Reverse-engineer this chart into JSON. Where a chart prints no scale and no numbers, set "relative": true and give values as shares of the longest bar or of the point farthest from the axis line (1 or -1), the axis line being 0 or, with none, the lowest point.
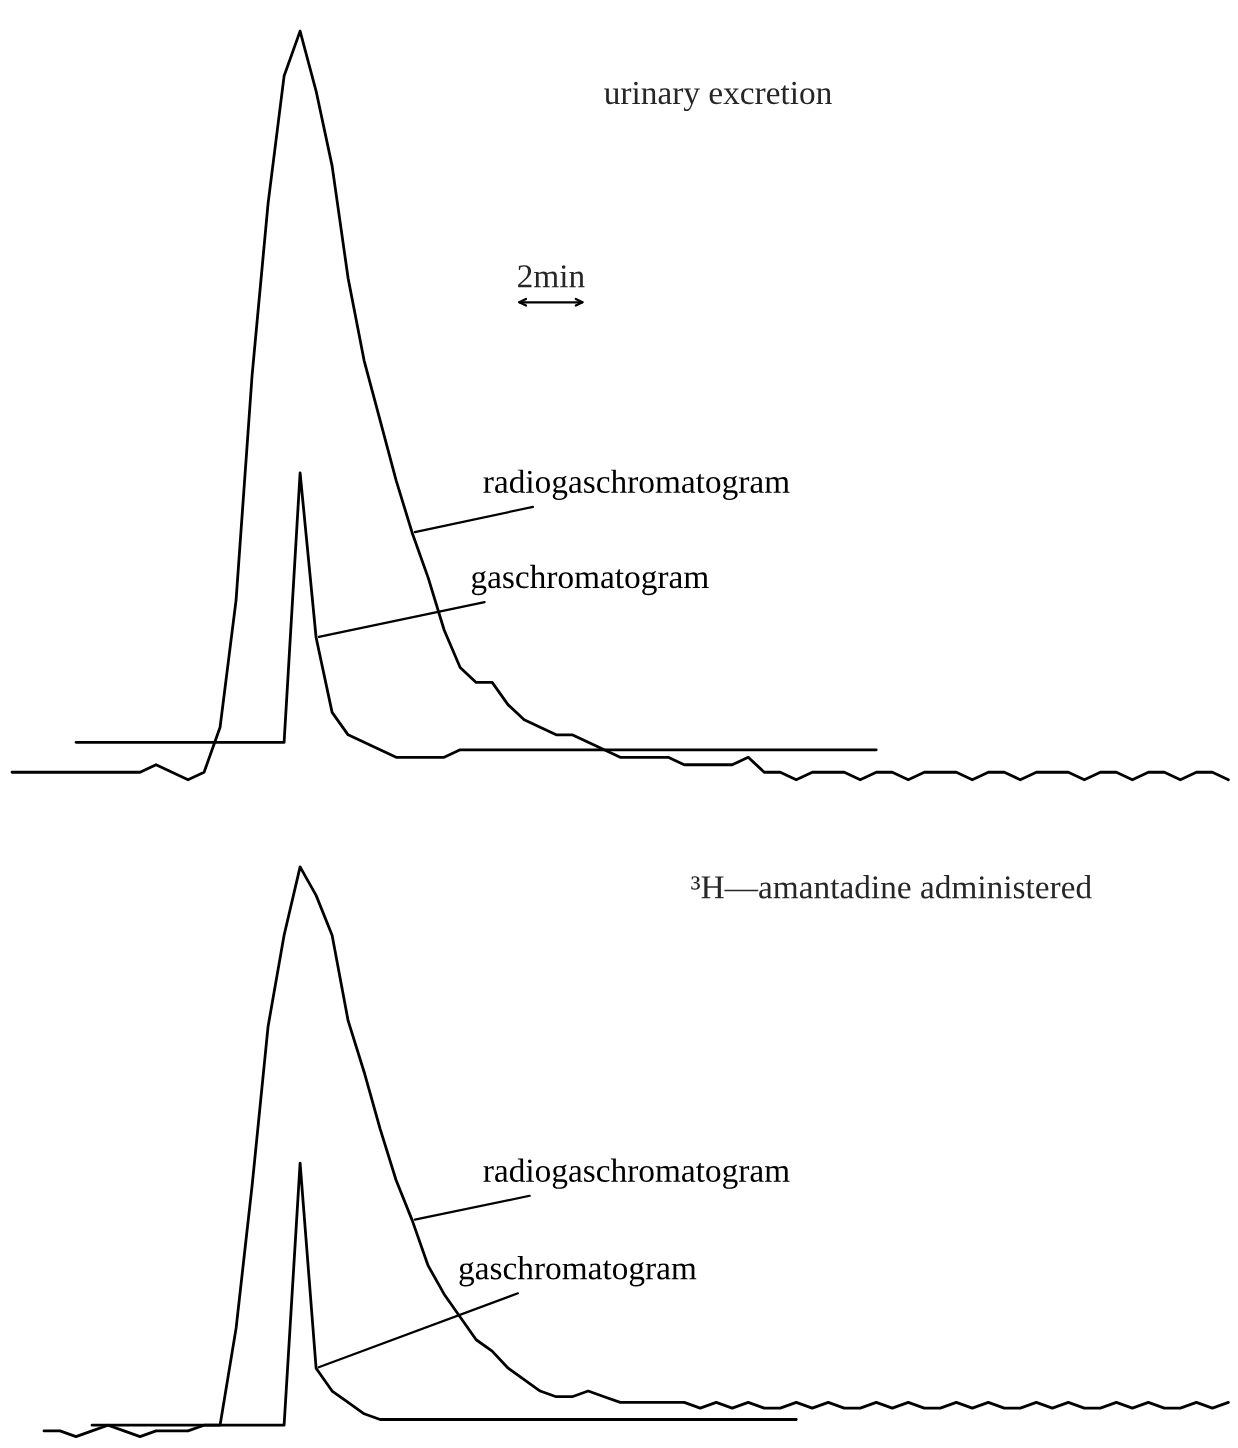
{
  "chart_data": [
    {
      "type": "line",
      "title": "urinary excretion",
      "relative": true,
      "annotations": [
        "2min"
      ],
      "categories": [
        null,
        null,
        null,
        null,
        null,
        null,
        null,
        null,
        null,
        null,
        null,
        null,
        null,
        null,
        null,
        null,
        null,
        null,
        null,
        null,
        null,
        null,
        null,
        null,
        null,
        null,
        null,
        null,
        null,
        null,
        null,
        null,
        null,
        null,
        null,
        null,
        null,
        null,
        null,
        null,
        null,
        null,
        null,
        null,
        null,
        null,
        null,
        null,
        null,
        null,
        null,
        null,
        null,
        null,
        null,
        null,
        null,
        null,
        null,
        null,
        null,
        null,
        null,
        null,
        null,
        null,
        null,
        null,
        null,
        null,
        null,
        null,
        null,
        null,
        null,
        null,
        null
      ],
      "series": [
        {
          "name": "radiogaschromatogram",
          "color": "#000000",
          "values": [
            0.01,
            0.01,
            0.01,
            0.01,
            0.01,
            0.01,
            0.01,
            0.01,
            0.01,
            0.02,
            0.01,
            0,
            0.01,
            0.07,
            0.24,
            0.54,
            0.77,
            0.94,
            1,
            0.92,
            0.82,
            0.67,
            0.56,
            0.48,
            0.4,
            0.33,
            0.27,
            0.2,
            0.15,
            0.13,
            0.13,
            0.1,
            0.08,
            0.07,
            0.06,
            0.06,
            0.05,
            0.04,
            0.03,
            0.03,
            0.03,
            0.03,
            0.02,
            0.02,
            0.02,
            0.02,
            0.03,
            0.01,
            0.01,
            0,
            0.01,
            0.01,
            0.01,
            0,
            0.01,
            0.01,
            0,
            0.01,
            0.01,
            0.01,
            0,
            0.01,
            0.01,
            0,
            0.01,
            0.01,
            0.01,
            0,
            0.01,
            0.01,
            0,
            0.01,
            0.01,
            0,
            0.01,
            0.01,
            0
          ]
        },
        {
          "name": "gaschromatogram",
          "color": "#000000",
          "values": [
            null,
            null,
            null,
            null,
            0.05,
            0.05,
            0.05,
            0.05,
            0.05,
            0.05,
            0.05,
            0.05,
            0.05,
            0.05,
            0.05,
            0.05,
            0.05,
            0.05,
            0.41,
            0.19,
            0.09,
            0.06,
            0.05,
            0.04,
            0.03,
            0.03,
            0.03,
            0.03,
            0.04,
            0.04,
            0.04,
            0.04,
            0.04,
            0.04,
            0.04,
            0.04,
            0.04,
            0.04,
            0.04,
            0.04,
            0.04,
            0.04,
            0.04,
            0.04,
            0.04,
            0.04,
            0.04,
            0.04,
            0.04,
            0.04,
            0.04,
            0.04,
            0.04,
            0.04,
            0.04,
            null,
            null,
            null,
            null,
            null,
            null,
            null,
            null,
            null,
            null,
            null,
            null,
            null,
            null,
            null,
            null,
            null,
            null,
            null,
            null,
            null,
            null
          ]
        }
      ]
    },
    {
      "type": "line",
      "title": "³H—amantadine administered",
      "relative": true,
      "categories": [
        null,
        null,
        null,
        null,
        null,
        null,
        null,
        null,
        null,
        null,
        null,
        null,
        null,
        null,
        null,
        null,
        null,
        null,
        null,
        null,
        null,
        null,
        null,
        null,
        null,
        null,
        null,
        null,
        null,
        null,
        null,
        null,
        null,
        null,
        null,
        null,
        null,
        null,
        null,
        null,
        null,
        null,
        null,
        null,
        null,
        null,
        null,
        null,
        null,
        null,
        null,
        null,
        null,
        null,
        null,
        null,
        null,
        null,
        null,
        null,
        null,
        null,
        null,
        null,
        null,
        null,
        null,
        null,
        null,
        null,
        null,
        null,
        null,
        null,
        null,
        null,
        null
      ],
      "series": [
        {
          "name": "radiogaschromatogram",
          "color": "#000000",
          "values": [
            null,
            null,
            0.01,
            0.01,
            0,
            0.01,
            0.02,
            0.01,
            0,
            0.01,
            0.01,
            0.01,
            0.02,
            0.02,
            0.19,
            0.44,
            0.72,
            0.88,
            1,
            0.95,
            0.88,
            0.73,
            0.64,
            0.54,
            0.45,
            0.38,
            0.3,
            0.25,
            0.21,
            0.17,
            0.15,
            0.12,
            0.1,
            0.08,
            0.07,
            0.07,
            0.08,
            0.07,
            0.06,
            0.06,
            0.06,
            0.06,
            0.06,
            0.05,
            0.06,
            0.05,
            0.06,
            0.05,
            0.05,
            0.06,
            0.05,
            0.06,
            0.05,
            0.05,
            0.06,
            0.05,
            0.06,
            0.05,
            0.05,
            0.06,
            0.05,
            0.06,
            0.05,
            0.05,
            0.06,
            0.05,
            0.06,
            0.05,
            0.05,
            0.06,
            0.05,
            0.06,
            0.05,
            0.05,
            0.06,
            0.05,
            0.06
          ]
        },
        {
          "name": "gaschromatogram",
          "color": "#000000",
          "values": [
            null,
            null,
            null,
            null,
            null,
            0.02,
            0.02,
            0.02,
            0.02,
            0.02,
            0.02,
            0.02,
            0.02,
            0.02,
            0.02,
            0.02,
            0.02,
            0.02,
            0.48,
            0.12,
            0.08,
            0.06,
            0.04,
            0.03,
            0.03,
            0.03,
            0.03,
            0.03,
            0.03,
            0.03,
            0.03,
            0.03,
            0.03,
            0.03,
            0.03,
            0.03,
            0.03,
            0.03,
            0.03,
            0.03,
            0.03,
            0.03,
            0.03,
            0.03,
            0.03,
            0.03,
            0.03,
            0.03,
            0.03,
            0.03,
            null,
            null,
            null,
            null,
            null,
            null,
            null,
            null,
            null,
            null,
            null,
            null,
            null,
            null,
            null,
            null,
            null,
            null,
            null,
            null,
            null,
            null,
            null,
            null,
            null,
            null,
            null
          ]
        }
      ]
    }
  ]
}
